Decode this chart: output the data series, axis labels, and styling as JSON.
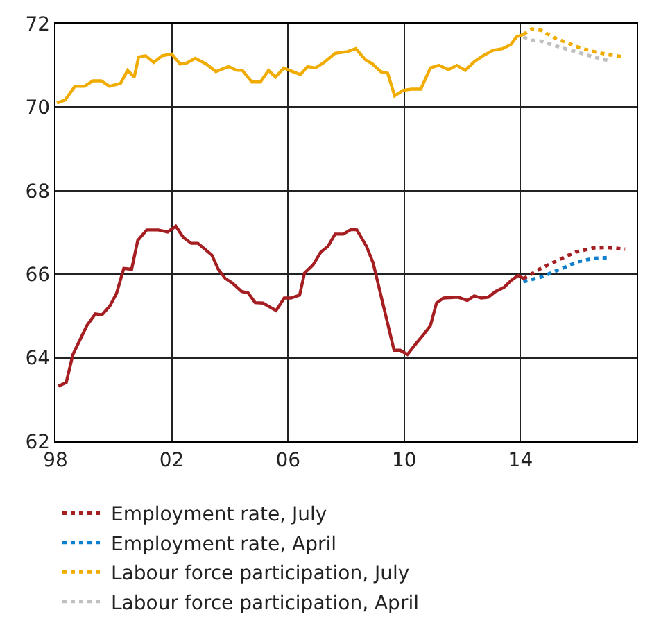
{
  "chart_data": {
    "type": "line",
    "series": [
      {
        "color": "#a51e22",
        "line_style": "solid",
        "x": [
          1998.1,
          1998.37,
          1998.6,
          1999.08,
          1999.37,
          1999.6,
          1999.87,
          2000.1,
          2000.35,
          2000.62,
          2000.83,
          2001.14,
          2001.54,
          2001.86,
          2002.14,
          2002.4,
          2002.67,
          2002.9,
          2003.38,
          2003.6,
          2003.84,
          2004.08,
          2004.4,
          2004.63,
          2004.87,
          2005.14,
          2005.59,
          2005.87,
          2006.1,
          2006.4,
          2006.57,
          2006.86,
          2007.13,
          2007.38,
          2007.62,
          2007.9,
          2008.17,
          2008.37,
          2008.7,
          2008.93,
          2009.65,
          2009.86,
          2010.11,
          2010.43,
          2010.67,
          2010.9,
          2011.11,
          2011.35,
          2011.86,
          2012.17,
          2012.41,
          2012.65,
          2012.89,
          2013.13,
          2013.44,
          2013.68,
          2013.92,
          2014.13
        ],
        "values": [
          63.32,
          63.41,
          64.08,
          64.77,
          65.05,
          65.03,
          65.24,
          65.54,
          66.14,
          66.12,
          66.81,
          67.06,
          67.06,
          67.01,
          67.15,
          66.88,
          66.74,
          66.74,
          66.46,
          66.12,
          65.9,
          65.79,
          65.59,
          65.55,
          65.32,
          65.31,
          65.13,
          65.43,
          65.43,
          65.5,
          66.03,
          66.22,
          66.53,
          66.67,
          66.96,
          66.96,
          67.07,
          67.06,
          66.67,
          66.27,
          64.18,
          64.18,
          64.08,
          64.36,
          64.56,
          64.77,
          65.31,
          65.43,
          65.45,
          65.37,
          65.48,
          65.43,
          65.45,
          65.58,
          65.69,
          65.85,
          65.97,
          65.89
        ]
      },
      {
        "color": "#f0ac00",
        "line_style": "solid",
        "x": [
          1998.05,
          1998.33,
          1998.67,
          1999.0,
          1999.29,
          1999.57,
          1999.86,
          2000.24,
          2000.48,
          2000.71,
          2000.86,
          2001.1,
          2001.38,
          2001.67,
          2002.0,
          2002.29,
          2002.52,
          2002.81,
          2003.19,
          2003.52,
          2003.95,
          2004.24,
          2004.43,
          2004.76,
          2005.05,
          2005.33,
          2005.57,
          2005.86,
          2006.05,
          2006.43,
          2006.67,
          2006.95,
          2007.24,
          2007.62,
          2008.05,
          2008.33,
          2008.67,
          2008.9,
          2009.19,
          2009.43,
          2009.67,
          2009.95,
          2010.24,
          2010.57,
          2010.9,
          2011.19,
          2011.52,
          2011.81,
          2012.1,
          2012.43,
          2012.71,
          2013.05,
          2013.38,
          2013.67,
          2013.86,
          2014.1
        ],
        "values": [
          70.1,
          70.17,
          70.5,
          70.5,
          70.63,
          70.63,
          70.5,
          70.57,
          70.88,
          70.72,
          71.2,
          71.23,
          71.07,
          71.23,
          71.27,
          71.03,
          71.06,
          71.17,
          71.03,
          70.85,
          70.97,
          70.88,
          70.88,
          70.6,
          70.6,
          70.88,
          70.72,
          70.94,
          70.88,
          70.78,
          70.97,
          70.94,
          71.07,
          71.29,
          71.33,
          71.4,
          71.13,
          71.04,
          70.85,
          70.81,
          70.27,
          70.4,
          70.43,
          70.43,
          70.94,
          71.0,
          70.9,
          71.0,
          70.88,
          71.1,
          71.23,
          71.36,
          71.4,
          71.5,
          71.68,
          71.74
        ]
      },
      {
        "name": "Employment rate, July",
        "color": "#a51e22",
        "line_style": "dotted",
        "x": [
          2014.1,
          2014.7,
          2015.33,
          2015.9,
          2016.52,
          2017.0,
          2017.6
        ],
        "values": [
          65.89,
          66.14,
          66.35,
          66.53,
          66.63,
          66.64,
          66.6
        ]
      },
      {
        "name": "Employment rate, April",
        "color": "#0d7fcc",
        "line_style": "dotted",
        "x": [
          2014.1,
          2014.7,
          2015.33,
          2015.97,
          2016.52,
          2017.08
        ],
        "values": [
          65.82,
          65.93,
          66.11,
          66.3,
          66.38,
          66.4
        ]
      },
      {
        "name": "Labour force participation, July",
        "color": "#f0ac00",
        "line_style": "dotted",
        "x": [
          2014.1,
          2014.38,
          2014.71,
          2015.1,
          2015.57,
          2016.05,
          2016.52,
          2017.0,
          2017.57
        ],
        "values": [
          71.74,
          71.87,
          71.84,
          71.68,
          71.55,
          71.42,
          71.33,
          71.26,
          71.2
        ]
      },
      {
        "name": "Labour force participation, April",
        "color": "#c0c0c0",
        "line_style": "dotted",
        "x": [
          2014.1,
          2014.38,
          2014.71,
          2015.1,
          2015.57,
          2016.05,
          2016.52,
          2017.1
        ],
        "values": [
          71.68,
          71.6,
          71.58,
          71.49,
          71.39,
          71.3,
          71.2,
          71.1
        ]
      }
    ],
    "xlim": [
      1998,
      2018
    ],
    "xticks": [
      {
        "value": 1998,
        "label": "98"
      },
      {
        "value": 2002,
        "label": "02"
      },
      {
        "value": 2006,
        "label": "06"
      },
      {
        "value": 2010,
        "label": "10"
      },
      {
        "value": 2014,
        "label": "14"
      },
      {
        "value": 2018,
        "label": null
      }
    ],
    "ylim": [
      62,
      72
    ],
    "yticks": [
      62,
      64,
      66,
      68,
      70,
      72
    ],
    "grid": true,
    "legend": "bottom"
  }
}
